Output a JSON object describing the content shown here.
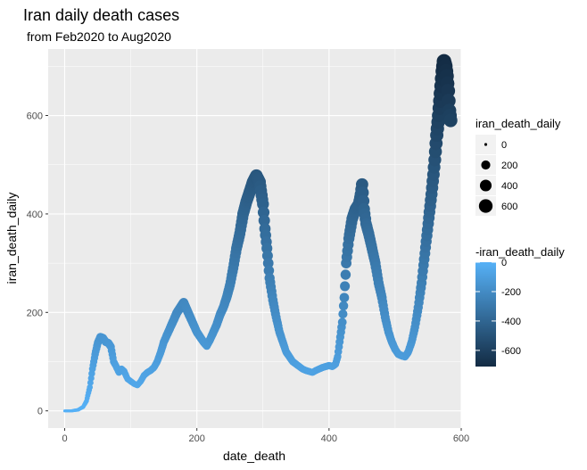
{
  "chart_data": {
    "type": "scatter",
    "title": "Iran daily death cases",
    "subtitle": "from Feb2020 to Aug2020",
    "xlabel": "date_death",
    "ylabel": "iran_death_daily",
    "xlim": [
      -25,
      600
    ],
    "ylim": [
      -35,
      735
    ],
    "x_ticks": [
      0,
      200,
      400,
      600
    ],
    "y_ticks": [
      0,
      200,
      400,
      600
    ],
    "grid": true,
    "legend_placement": "right",
    "size_legend": {
      "title": "iran_death_daily",
      "values": [
        0,
        200,
        400,
        600
      ],
      "labels": [
        "0",
        "200",
        "400",
        "600"
      ]
    },
    "color_legend": {
      "title": "-iran_death_daily",
      "values": [
        0,
        -200,
        -400,
        -600
      ],
      "labels": [
        "0",
        "-200",
        "-400",
        "-600"
      ],
      "low_color": "#132b43",
      "high_color": "#56b1f7"
    },
    "anchors": [
      [
        0,
        0
      ],
      [
        10,
        0
      ],
      [
        20,
        2
      ],
      [
        28,
        8
      ],
      [
        33,
        20
      ],
      [
        38,
        48
      ],
      [
        42,
        85
      ],
      [
        46,
        115
      ],
      [
        50,
        138
      ],
      [
        54,
        150
      ],
      [
        58,
        148
      ],
      [
        62,
        140
      ],
      [
        66,
        138
      ],
      [
        70,
        130
      ],
      [
        74,
        100
      ],
      [
        78,
        90
      ],
      [
        82,
        78
      ],
      [
        86,
        85
      ],
      [
        90,
        80
      ],
      [
        95,
        65
      ],
      [
        100,
        60
      ],
      [
        105,
        55
      ],
      [
        110,
        52
      ],
      [
        115,
        60
      ],
      [
        120,
        72
      ],
      [
        125,
        78
      ],
      [
        130,
        82
      ],
      [
        135,
        88
      ],
      [
        140,
        100
      ],
      [
        145,
        118
      ],
      [
        150,
        140
      ],
      [
        155,
        155
      ],
      [
        160,
        170
      ],
      [
        165,
        185
      ],
      [
        170,
        200
      ],
      [
        175,
        210
      ],
      [
        180,
        220
      ],
      [
        185,
        205
      ],
      [
        190,
        190
      ],
      [
        195,
        175
      ],
      [
        200,
        160
      ],
      [
        205,
        150
      ],
      [
        210,
        140
      ],
      [
        215,
        132
      ],
      [
        220,
        145
      ],
      [
        225,
        160
      ],
      [
        230,
        175
      ],
      [
        235,
        195
      ],
      [
        240,
        210
      ],
      [
        245,
        230
      ],
      [
        250,
        255
      ],
      [
        255,
        290
      ],
      [
        260,
        330
      ],
      [
        265,
        360
      ],
      [
        270,
        400
      ],
      [
        275,
        425
      ],
      [
        280,
        445
      ],
      [
        285,
        465
      ],
      [
        290,
        478
      ],
      [
        295,
        465
      ],
      [
        300,
        420
      ],
      [
        303,
        370
      ],
      [
        306,
        330
      ],
      [
        310,
        270
      ],
      [
        315,
        225
      ],
      [
        320,
        190
      ],
      [
        325,
        160
      ],
      [
        330,
        140
      ],
      [
        335,
        120
      ],
      [
        340,
        110
      ],
      [
        345,
        100
      ],
      [
        350,
        95
      ],
      [
        355,
        90
      ],
      [
        360,
        85
      ],
      [
        365,
        82
      ],
      [
        370,
        80
      ],
      [
        375,
        78
      ],
      [
        380,
        82
      ],
      [
        385,
        85
      ],
      [
        390,
        88
      ],
      [
        395,
        90
      ],
      [
        400,
        92
      ],
      [
        405,
        90
      ],
      [
        410,
        95
      ],
      [
        413,
        110
      ],
      [
        416,
        140
      ],
      [
        420,
        180
      ],
      [
        423,
        230
      ],
      [
        426,
        300
      ],
      [
        430,
        350
      ],
      [
        435,
        390
      ],
      [
        440,
        410
      ],
      [
        445,
        420
      ],
      [
        448,
        440
      ],
      [
        450,
        460
      ],
      [
        453,
        410
      ],
      [
        456,
        380
      ],
      [
        460,
        360
      ],
      [
        465,
        330
      ],
      [
        470,
        300
      ],
      [
        475,
        260
      ],
      [
        480,
        230
      ],
      [
        485,
        190
      ],
      [
        490,
        160
      ],
      [
        495,
        140
      ],
      [
        500,
        125
      ],
      [
        505,
        115
      ],
      [
        510,
        112
      ],
      [
        515,
        110
      ],
      [
        520,
        120
      ],
      [
        525,
        140
      ],
      [
        530,
        170
      ],
      [
        535,
        210
      ],
      [
        540,
        260
      ],
      [
        545,
        320
      ],
      [
        550,
        380
      ],
      [
        555,
        440
      ],
      [
        558,
        480
      ],
      [
        560,
        510
      ],
      [
        563,
        560
      ],
      [
        566,
        600
      ],
      [
        568,
        630
      ],
      [
        570,
        660
      ],
      [
        572,
        690
      ],
      [
        574,
        710
      ],
      [
        576,
        700
      ],
      [
        578,
        680
      ],
      [
        580,
        650
      ],
      [
        582,
        610
      ],
      [
        584,
        590
      ]
    ]
  }
}
